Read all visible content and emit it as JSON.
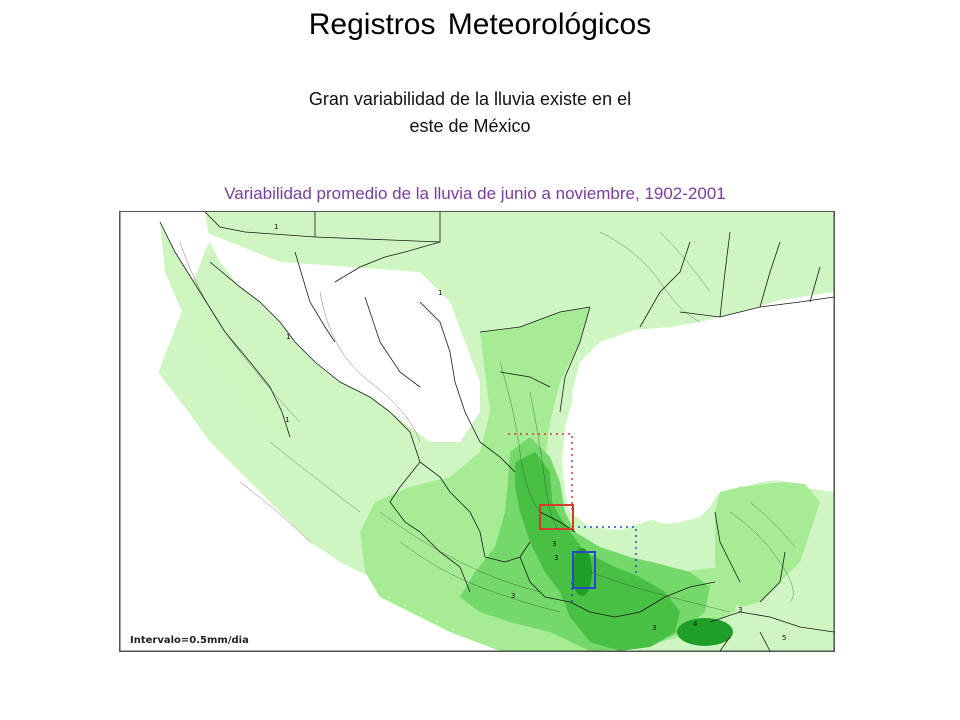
{
  "title": "Registros Meteorológicos",
  "subtitle_line1": "Gran variabilidad de la lluvia existe en el",
  "subtitle_line2": "este de México",
  "map_caption": "Variabilidad promedio de la lluvia de junio a noviembre, 1902-2001",
  "interval_note": "Intervalo=0.5mm/dia",
  "contour_labels": [
    "1",
    "1",
    "1",
    "1",
    "3",
    "3",
    "3",
    "3",
    "3",
    "4",
    "5"
  ],
  "colors": {
    "level1": "#ccf5bf",
    "level2": "#a6ec94",
    "level3": "#74d86a",
    "level4": "#48c043",
    "level5": "#1f9f2a",
    "red_box": "#d63a2a",
    "blue_box": "#2b45c9",
    "caption": "#7a3d9a"
  }
}
